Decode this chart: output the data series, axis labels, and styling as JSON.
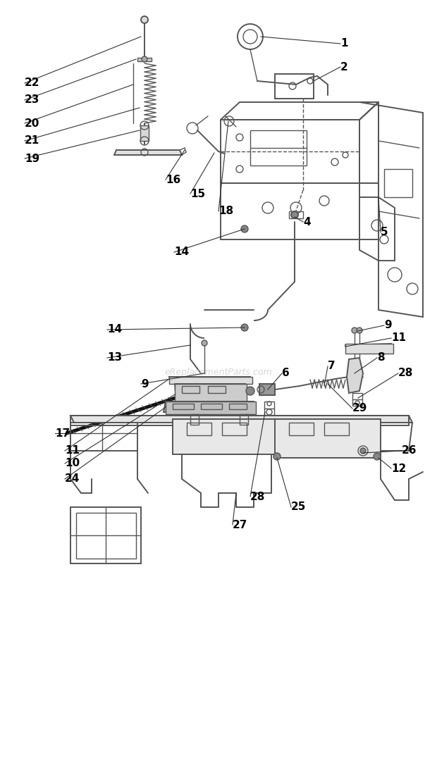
{
  "fig_width": 6.2,
  "fig_height": 10.79,
  "dpi": 100,
  "background_color": "#ffffff",
  "line_color": "#555555",
  "dark_line": "#333333",
  "watermark": "eReplacementParts.com",
  "watermark_color": "#cccccc",
  "label_fontsize": 11,
  "label_color": "#000000"
}
